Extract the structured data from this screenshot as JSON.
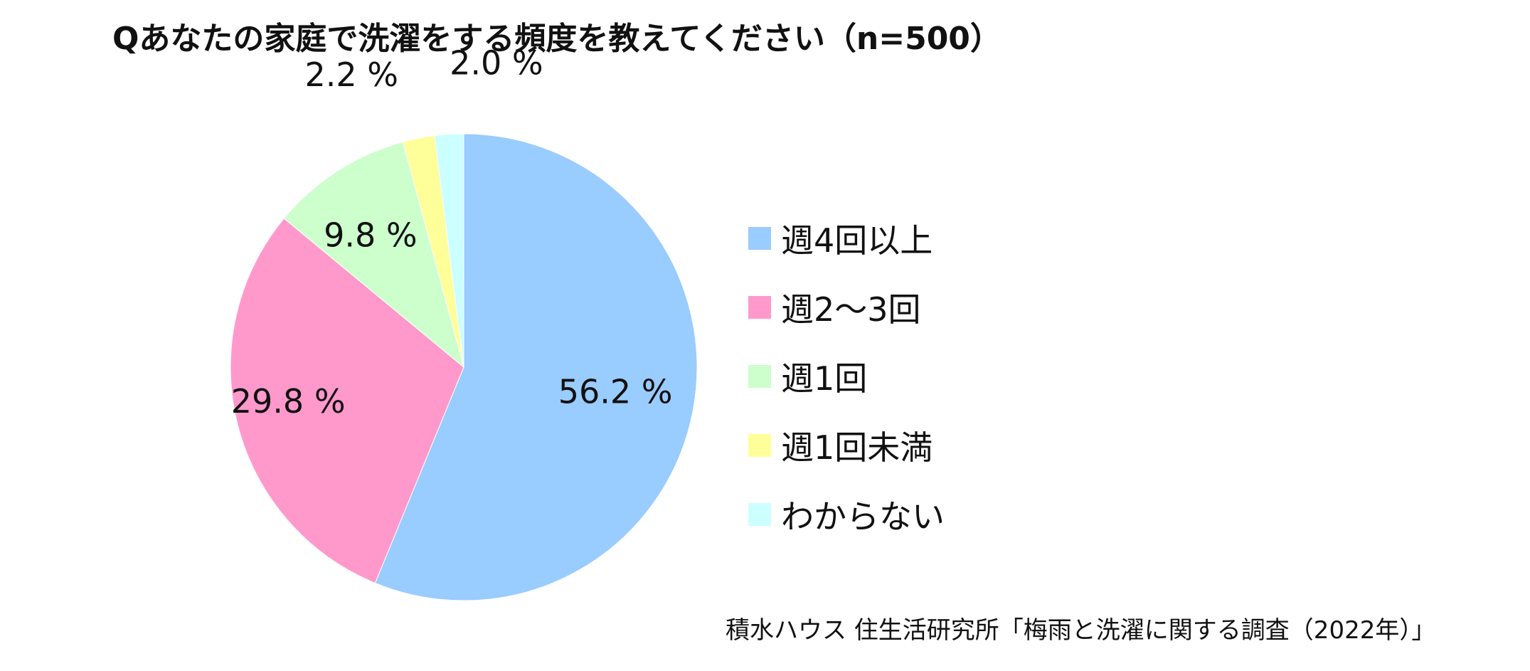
{
  "title": "Qあなたの家庭で洗濯をする頻度を教えてください（n=500）",
  "source": "積水ハウス 住生活研究所「梅雨と洗濯に関する調査（2022年）」",
  "chart_data": {
    "type": "pie",
    "title": "Qあなたの家庭で洗濯をする頻度を教えてください（n=500）",
    "unit": "%",
    "start": "12 o'clock, clockwise",
    "legend_position": "right",
    "slices": [
      {
        "label": "週4回以上",
        "value": 56.2,
        "value_label": "56.2 %",
        "color": "#99ccff"
      },
      {
        "label": "週2〜3回",
        "value": 29.8,
        "value_label": "29.8 %",
        "color": "#ff99cc"
      },
      {
        "label": "週1回",
        "value": 9.8,
        "value_label": "9.8 %",
        "color": "#ccffcc"
      },
      {
        "label": "週1回未満",
        "value": 2.2,
        "value_label": "2.2 %",
        "color": "#ffff99"
      },
      {
        "label": "わからない",
        "value": 2.0,
        "value_label": "2.0 %",
        "color": "#ccffff"
      }
    ]
  }
}
